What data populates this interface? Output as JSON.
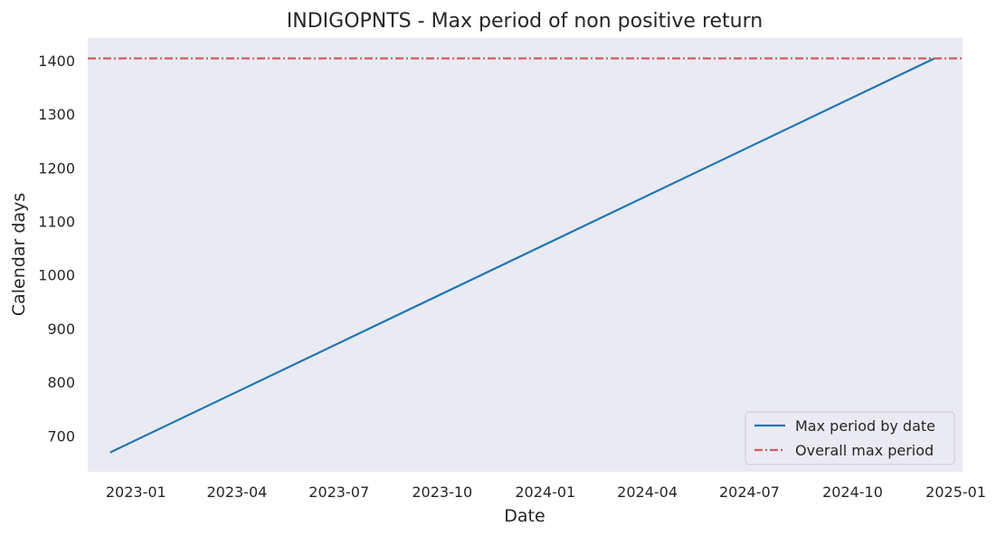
{
  "chart_data": {
    "type": "line",
    "title": "INDIGOPNTS - Max period of non positive return",
    "xlabel": "Date",
    "ylabel": "Calendar days",
    "x_ticks": [
      "2023-01",
      "2023-04",
      "2023-07",
      "2023-10",
      "2024-01",
      "2024-04",
      "2024-07",
      "2024-10",
      "2025-01"
    ],
    "y_ticks": [
      700,
      800,
      900,
      1000,
      1100,
      1200,
      1300,
      1400
    ],
    "xlim": [
      "2022-11-19",
      "2025-01-07"
    ],
    "ylim": [
      633,
      1442
    ],
    "grid": false,
    "legend_position": "lower-right",
    "series": [
      {
        "name": "Max period by date",
        "color": "#1f77b4",
        "style": "solid",
        "points": [
          [
            "2022-12-09",
            669
          ],
          [
            "2024-12-13",
            1404
          ]
        ]
      }
    ],
    "hlines": [
      {
        "name": "Overall max period",
        "color": "#cd5c5c",
        "style": "dashdot",
        "y": 1404
      }
    ],
    "background_color": "#eaeaf2"
  }
}
